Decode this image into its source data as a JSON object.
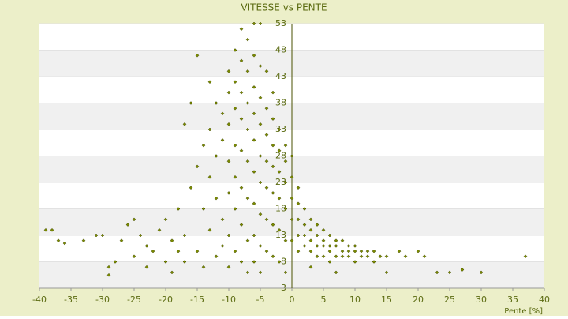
{
  "chart_data": {
    "type": "scatter",
    "title": "VITESSE vs PENTE",
    "x_label": "Pente [%]",
    "color": "#7a8a00",
    "edge_color": "#3d4500",
    "background": "#ecefc9",
    "band_color": "#f0f0f0",
    "grid": true,
    "xlim": [
      -40,
      40
    ],
    "xticks": [
      -40,
      -35,
      -30,
      -25,
      -20,
      -15,
      -10,
      -5,
      0,
      5,
      10,
      15,
      20,
      25,
      30,
      35,
      40
    ],
    "ylim": [
      3,
      53
    ],
    "yticks": [
      3,
      8,
      13,
      18,
      23,
      28,
      33,
      38,
      43,
      48,
      53
    ],
    "x": [
      -39,
      -38,
      -37,
      -36,
      -33,
      -31,
      -30,
      -29,
      -29,
      -28,
      -27,
      -26,
      -25,
      -25,
      -24,
      -23,
      -23,
      -22,
      -21,
      -20,
      -20,
      -19,
      -19,
      -18,
      -18,
      -17,
      -17,
      -17,
      -16,
      -16,
      -15,
      -15,
      -15,
      -14,
      -14,
      -14,
      -13,
      -13,
      -13,
      -13,
      -12,
      -12,
      -12,
      -12,
      -11,
      -11,
      -11,
      -11,
      -10,
      -10,
      -10,
      -10,
      -10,
      -10,
      -10,
      -9,
      -9,
      -9,
      -9,
      -9,
      -9,
      -9,
      -8,
      -8,
      -8,
      -8,
      -8,
      -8,
      -8,
      -8,
      -7,
      -7,
      -7,
      -7,
      -7,
      -7,
      -7,
      -7,
      -6,
      -6,
      -6,
      -6,
      -6,
      -6,
      -6,
      -6,
      -6,
      -5,
      -5,
      -5,
      -5,
      -5,
      -5,
      -5,
      -5,
      -5,
      -4,
      -4,
      -4,
      -4,
      -4,
      -4,
      -4,
      -3,
      -3,
      -3,
      -3,
      -3,
      -3,
      -3,
      -2,
      -2,
      -2,
      -2,
      -2,
      -2,
      -1,
      -1,
      -1,
      -1,
      -1,
      -1,
      0,
      0,
      0,
      0,
      0,
      1,
      1,
      1,
      1,
      1,
      2,
      2,
      2,
      2,
      3,
      3,
      3,
      3,
      3,
      4,
      4,
      4,
      4,
      5,
      5,
      5,
      5,
      6,
      6,
      6,
      6,
      7,
      7,
      7,
      7,
      8,
      8,
      8,
      9,
      9,
      9,
      10,
      10,
      10,
      11,
      11,
      12,
      12,
      13,
      13,
      14,
      15,
      15,
      17,
      18,
      20,
      21,
      23,
      25,
      27,
      30,
      37
    ],
    "values": [
      14,
      14,
      12,
      11.5,
      12,
      13,
      13,
      7,
      5.5,
      8,
      12,
      15,
      16,
      9,
      13,
      7,
      11,
      10,
      14,
      8,
      16,
      12,
      6,
      10,
      18,
      8,
      13,
      34,
      38,
      22,
      47,
      26,
      10,
      30,
      18,
      7,
      42,
      33,
      24,
      14,
      38,
      28,
      20,
      9,
      36,
      31,
      16,
      11,
      44,
      40,
      34,
      27,
      21,
      13,
      7,
      48,
      42,
      37,
      30,
      24,
      18,
      10,
      52,
      46,
      40,
      35,
      29,
      22,
      15,
      8,
      50,
      44,
      38,
      33,
      27,
      20,
      12,
      6,
      53,
      47,
      41,
      36,
      31,
      25,
      19,
      13,
      8,
      53,
      45,
      39,
      34,
      28,
      23,
      17,
      11,
      6,
      44,
      37,
      32,
      27,
      22,
      16,
      10,
      40,
      35,
      30,
      26,
      21,
      15,
      9,
      33,
      29,
      25,
      20,
      14,
      8,
      30,
      27,
      23,
      18,
      12,
      6,
      28,
      24,
      20,
      16,
      12,
      22,
      19,
      16,
      13,
      10,
      18,
      15,
      13,
      11,
      16,
      14,
      12,
      10,
      7,
      15,
      13,
      11,
      9,
      14,
      12,
      11,
      9,
      13,
      11,
      10,
      8,
      12,
      11,
      9,
      6,
      12,
      10,
      9,
      11,
      10,
      9,
      11,
      10,
      8,
      10,
      9,
      10,
      9,
      10,
      8,
      9,
      9,
      6,
      10,
      9,
      10,
      9,
      6,
      6,
      6.5,
      6,
      9
    ]
  }
}
